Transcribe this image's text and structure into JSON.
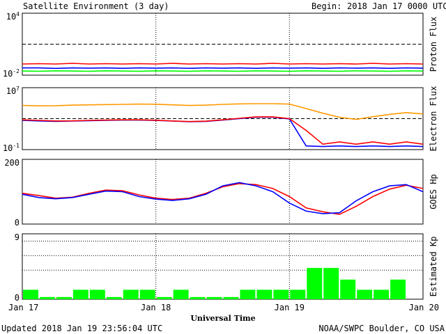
{
  "header": {
    "title": "Satellite Environment (3 day)",
    "begin_label": "Begin:",
    "begin_value": "2018 Jan 17 0000 UTC"
  },
  "footer": {
    "updated": "Updated 2018 Jan 19 23:56:04 UTC",
    "credit": "NOAA/SWPC Boulder, CO USA"
  },
  "colors": {
    "red": "#ff0000",
    "blue": "#0000ff",
    "green": "#00ff00",
    "orange": "#ff9900",
    "kp_bar": "#00ff00"
  },
  "chart_data": [
    {
      "type": "line",
      "ylabel": "Proton Flux",
      "y_scale": "log",
      "ylim": [
        0.01,
        10000
      ],
      "y_ticks": [
        {
          "base": "10",
          "exp": "4"
        },
        {
          "base": "10",
          "exp": "-2"
        }
      ],
      "threshold": 10,
      "x": [
        0,
        0.125,
        0.25,
        0.375,
        0.5,
        0.625,
        0.75,
        0.875,
        1,
        1.125,
        1.25,
        1.375,
        1.5,
        1.625,
        1.75,
        1.875,
        2,
        2.125,
        2.25,
        2.375,
        2.5,
        2.625,
        2.75,
        2.875,
        3
      ],
      "series": [
        {
          "color_key": "red",
          "values": [
            0.12,
            0.13,
            0.12,
            0.14,
            0.12,
            0.13,
            0.12,
            0.13,
            0.12,
            0.14,
            0.12,
            0.13,
            0.12,
            0.13,
            0.12,
            0.14,
            0.12,
            0.13,
            0.12,
            0.13,
            0.12,
            0.14,
            0.12,
            0.13,
            0.12
          ]
        },
        {
          "color_key": "blue",
          "values": [
            0.05,
            0.05,
            0.045,
            0.05,
            0.048,
            0.05,
            0.046,
            0.05,
            0.048,
            0.05,
            0.046,
            0.05,
            0.048,
            0.05,
            0.046,
            0.05,
            0.048,
            0.05,
            0.046,
            0.05,
            0.048,
            0.05,
            0.046,
            0.05,
            0.048
          ]
        },
        {
          "color_key": "green",
          "values": [
            0.025,
            0.024,
            0.026,
            0.025,
            0.024,
            0.026,
            0.025,
            0.024,
            0.026,
            0.025,
            0.024,
            0.026,
            0.025,
            0.024,
            0.026,
            0.025,
            0.024,
            0.026,
            0.025,
            0.024,
            0.026,
            0.025,
            0.024,
            0.026,
            0.025
          ]
        }
      ]
    },
    {
      "type": "line",
      "ylabel": "Electron Flux",
      "y_scale": "log",
      "ylim": [
        0.1,
        10000000
      ],
      "y_ticks": [
        {
          "base": "10",
          "exp": "7"
        },
        {
          "base": "10",
          "exp": "-1"
        }
      ],
      "threshold": 1000,
      "x": [
        0,
        0.125,
        0.25,
        0.375,
        0.5,
        0.625,
        0.75,
        0.875,
        1,
        1.125,
        1.25,
        1.375,
        1.5,
        1.625,
        1.75,
        1.875,
        2,
        2.125,
        2.25,
        2.375,
        2.5,
        2.625,
        2.75,
        2.875,
        3
      ],
      "series": [
        {
          "color_key": "orange",
          "values": [
            50000,
            45000,
            47000,
            55000,
            60000,
            65000,
            70000,
            75000,
            72000,
            60000,
            50000,
            55000,
            70000,
            80000,
            85000,
            85000,
            75000,
            20000,
            5000,
            1500,
            800,
            1800,
            3500,
            6000,
            4000
          ]
        },
        {
          "color_key": "blue",
          "values": [
            600,
            500,
            450,
            480,
            550,
            600,
            650,
            650,
            580,
            480,
            400,
            450,
            650,
            1000,
            1500,
            1500,
            900,
            0.3,
            0.25,
            0.3,
            0.25,
            0.3,
            0.25,
            0.3,
            0.25
          ]
        },
        {
          "color_key": "red",
          "values": [
            700,
            600,
            500,
            520,
            600,
            650,
            700,
            700,
            620,
            500,
            420,
            470,
            700,
            1100,
            1700,
            1700,
            1000,
            30,
            0.5,
            1,
            0.5,
            1,
            0.5,
            1,
            0.5
          ]
        }
      ]
    },
    {
      "type": "line",
      "ylabel": "GOES Hp",
      "y_scale": "linear",
      "ylim": [
        0,
        200
      ],
      "y_ticks": [
        {
          "value": "200"
        },
        {
          "value": "0"
        }
      ],
      "x": [
        0,
        0.125,
        0.25,
        0.375,
        0.5,
        0.625,
        0.75,
        0.875,
        1,
        1.125,
        1.25,
        1.375,
        1.5,
        1.625,
        1.75,
        1.875,
        2,
        2.125,
        2.25,
        2.375,
        2.5,
        2.625,
        2.75,
        2.875,
        3
      ],
      "series": [
        {
          "color_key": "red",
          "values": [
            95,
            88,
            80,
            83,
            95,
            105,
            103,
            90,
            80,
            76,
            80,
            95,
            115,
            125,
            122,
            110,
            85,
            50,
            38,
            30,
            55,
            85,
            108,
            120,
            110
          ]
        },
        {
          "color_key": "blue",
          "values": [
            92,
            82,
            78,
            82,
            92,
            102,
            100,
            85,
            77,
            73,
            78,
            92,
            118,
            128,
            118,
            100,
            65,
            40,
            32,
            35,
            72,
            100,
            118,
            122,
            100
          ]
        }
      ]
    },
    {
      "type": "bar",
      "ylabel": "Estimated Kp",
      "ylim": [
        0,
        9
      ],
      "y_ticks": [
        {
          "value": "9"
        },
        {
          "value": "0"
        }
      ],
      "y_gridlines": [
        4,
        6,
        8
      ],
      "bar_width_hours": 3,
      "values": [
        1.3,
        0.3,
        0.3,
        1.3,
        1.3,
        0.3,
        1.3,
        1.3,
        0.3,
        1.3,
        0.3,
        0.3,
        0.3,
        1.3,
        1.3,
        1.3,
        1.3,
        4.3,
        4.3,
        2.7,
        1.3,
        1.3,
        2.7,
        0
      ]
    }
  ],
  "x_axis": {
    "title": "Universal Time",
    "xlim": [
      0,
      3
    ],
    "ticks": [
      {
        "value": 0,
        "label": "Jan 17"
      },
      {
        "value": 1,
        "label": "Jan 18"
      },
      {
        "value": 2,
        "label": "Jan 19"
      },
      {
        "value": 3,
        "label": "Jan 20"
      }
    ]
  }
}
